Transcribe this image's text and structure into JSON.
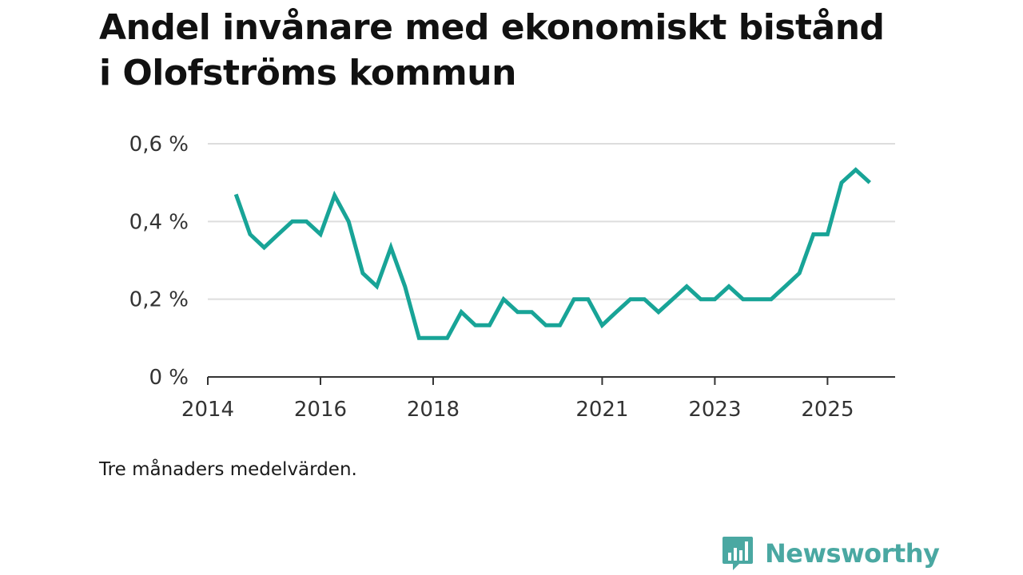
{
  "title": "Andel invånare med ekonomiskt bistånd i Olofströms kommun",
  "note": "Tre månaders medelvärden.",
  "brand": {
    "name": "Newsworthy",
    "icon": "bar-chart-speech-bubble-icon",
    "color": "#4aa8a2"
  },
  "colors": {
    "line": "#18a497",
    "grid": "#dddddd",
    "axis": "#333333"
  },
  "chart_data": {
    "type": "line",
    "title": "Andel invånare med ekonomiskt bistånd i Olofströms kommun",
    "xlabel": "",
    "ylabel": "",
    "grid": true,
    "legend": "none",
    "ylim": [
      0,
      0.6
    ],
    "xlim": [
      2014.0,
      2026.2
    ],
    "y_ticks": [
      {
        "value": 0,
        "label": "0 %"
      },
      {
        "value": 0.2,
        "label": "0,2 %"
      },
      {
        "value": 0.4,
        "label": "0,4 %"
      },
      {
        "value": 0.6,
        "label": "0,6 %"
      }
    ],
    "x_ticks": [
      {
        "value": 2014,
        "label": "2014"
      },
      {
        "value": 2016,
        "label": "2016"
      },
      {
        "value": 2018,
        "label": "2018"
      },
      {
        "value": 2021,
        "label": "2021"
      },
      {
        "value": 2023,
        "label": "2023"
      },
      {
        "value": 2025,
        "label": "2025"
      }
    ],
    "series": [
      {
        "name": "Andel invånare med ekonomiskt bistånd",
        "x": [
          2014.5,
          2014.75,
          2015.0,
          2015.25,
          2015.5,
          2015.75,
          2016.0,
          2016.25,
          2016.5,
          2016.75,
          2017.0,
          2017.25,
          2017.5,
          2017.75,
          2018.0,
          2018.25,
          2018.5,
          2018.75,
          2019.0,
          2019.25,
          2019.5,
          2019.75,
          2020.0,
          2020.25,
          2020.5,
          2020.75,
          2021.0,
          2021.25,
          2021.5,
          2021.75,
          2022.0,
          2022.25,
          2022.5,
          2022.75,
          2023.0,
          2023.25,
          2023.5,
          2023.75,
          2024.0,
          2024.25,
          2024.5,
          2024.75,
          2025.0,
          2025.25,
          2025.5,
          2025.75
        ],
        "y": [
          0.47,
          0.367,
          0.333,
          0.367,
          0.4,
          0.4,
          0.367,
          0.467,
          0.4,
          0.267,
          0.233,
          0.333,
          0.233,
          0.1,
          0.1,
          0.1,
          0.167,
          0.133,
          0.133,
          0.2,
          0.167,
          0.167,
          0.133,
          0.133,
          0.2,
          0.2,
          0.133,
          0.167,
          0.2,
          0.2,
          0.167,
          0.2,
          0.233,
          0.2,
          0.2,
          0.233,
          0.2,
          0.2,
          0.2,
          0.233,
          0.267,
          0.367,
          0.367,
          0.5,
          0.533,
          0.5
        ]
      }
    ]
  }
}
